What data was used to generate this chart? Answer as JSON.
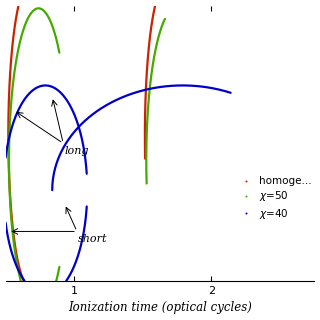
{
  "title": "",
  "xlabel": "Ionization time (optical cycles)",
  "xlim": [
    0.5,
    2.75
  ],
  "ylim": [
    0.0,
    1.0
  ],
  "legend_labels": [
    "homoge...",
    "χ=50",
    "χ=40"
  ],
  "legend_colors": [
    "#cc2200",
    "#44aa00",
    "#0000cc"
  ],
  "background_color": "#ffffff",
  "annotation_long": "long",
  "annotation_short": "short",
  "lw": 1.6
}
